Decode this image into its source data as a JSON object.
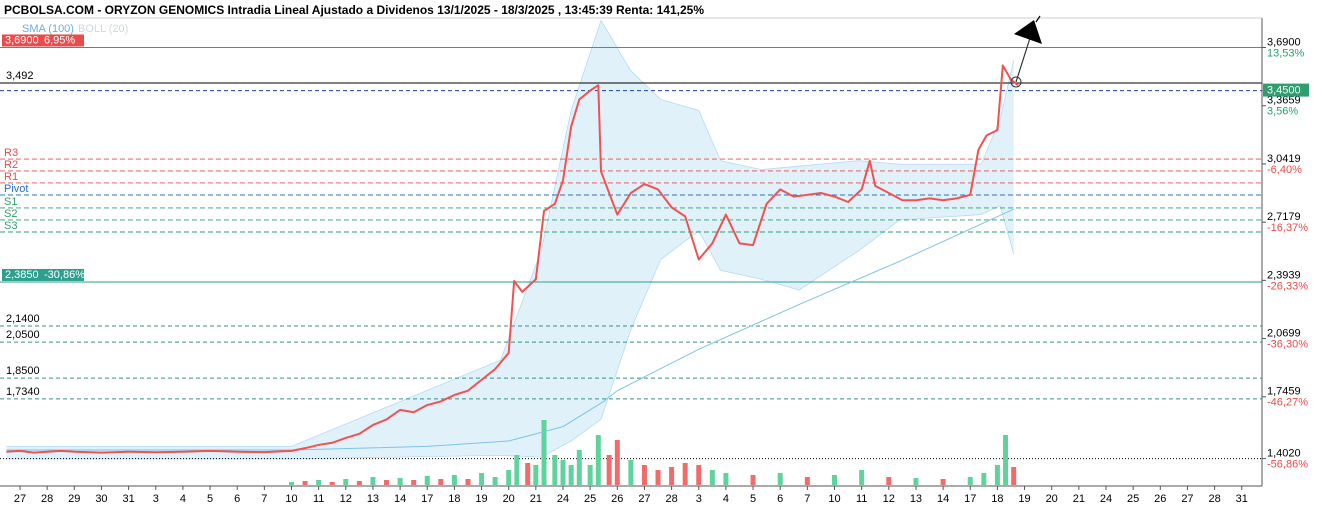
{
  "chart_data": {
    "type": "line",
    "title": "PCBOLSA.COM - ORYZON GENOMICS Intradia Lineal Ajustado a Dividenos 13/1/2025 - 18/3/2025 , 13:45:39 Renta: 141,25%",
    "categories": [
      "27",
      "28",
      "29",
      "30",
      "31",
      "3",
      "4",
      "5",
      "6",
      "7",
      "10",
      "11",
      "12",
      "13",
      "14",
      "17",
      "18",
      "19",
      "20",
      "21",
      "24",
      "25",
      "26",
      "27",
      "28",
      "3",
      "4",
      "5",
      "6",
      "7",
      "10",
      "11",
      "12",
      "13",
      "14",
      "17",
      "18",
      "19",
      "20",
      "21",
      "24",
      "25",
      "26",
      "27",
      "28",
      "31"
    ],
    "ylim": [
      1.255,
      3.854
    ],
    "yticks": [
      {
        "value": 3.69,
        "label": "3,6900"
      },
      {
        "value": 3.3659,
        "label": "3,3659"
      },
      {
        "value": 3.0419,
        "label": "3,0419"
      },
      {
        "value": 2.7179,
        "label": "2,7179"
      },
      {
        "value": 2.3939,
        "label": "2,3939"
      },
      {
        "value": 2.0699,
        "label": "2,0699"
      },
      {
        "value": 1.7459,
        "label": "1,7459"
      },
      {
        "value": 1.402,
        "label": "1,4020"
      }
    ],
    "ytick_pct": [
      "13,53%",
      "3,56%",
      "-6,40%",
      "-16,37%",
      "-26,33%",
      "-36,30%",
      "-46,27%",
      "-56,86%"
    ],
    "ytick_pct_colors": [
      "#26a269",
      "#26a269",
      "#e84c4c",
      "#e84c4c",
      "#e84c4c",
      "#e84c4c",
      "#e84c4c",
      "#e84c4c"
    ],
    "last_price": {
      "value": 3.45,
      "label": "3,4500",
      "color": "#2e9e6e"
    },
    "price": {
      "color": "#f05252",
      "x": [
        -0.5,
        0,
        0.5,
        1,
        1.5,
        2,
        3,
        4,
        5,
        6,
        7,
        8,
        9,
        10,
        10.5,
        11,
        11.5,
        12,
        12.5,
        13,
        13.5,
        14,
        14.5,
        15,
        15.5,
        16,
        16.5,
        17,
        17.5,
        18,
        18.2,
        18.5,
        19,
        19.3,
        19.7,
        20,
        20.3,
        20.6,
        21,
        21.3,
        21.4,
        21.7,
        22,
        22.5,
        23,
        23.5,
        24,
        24.5,
        25,
        25.5,
        26,
        26.5,
        27,
        27.5,
        28,
        28.5,
        29,
        29.5,
        30,
        30.5,
        31,
        31.3,
        31.5,
        32,
        32.5,
        33,
        33.5,
        34,
        34.5,
        35,
        35.3,
        35.6,
        36,
        36.2,
        36.5,
        36.76
      ],
      "values": [
        1.44,
        1.445,
        1.435,
        1.44,
        1.445,
        1.44,
        1.435,
        1.44,
        1.437,
        1.44,
        1.445,
        1.44,
        1.438,
        1.445,
        1.46,
        1.478,
        1.49,
        1.517,
        1.54,
        1.589,
        1.62,
        1.673,
        1.66,
        1.7,
        1.72,
        1.756,
        1.78,
        1.84,
        1.9,
        1.99,
        2.39,
        2.33,
        2.4,
        2.78,
        2.82,
        2.95,
        3.25,
        3.4,
        3.45,
        3.48,
        3.0,
        2.88,
        2.76,
        2.88,
        2.93,
        2.9,
        2.8,
        2.75,
        2.51,
        2.6,
        2.76,
        2.6,
        2.59,
        2.82,
        2.9,
        2.86,
        2.87,
        2.88,
        2.86,
        2.83,
        2.9,
        3.06,
        2.92,
        2.88,
        2.84,
        2.84,
        2.85,
        2.84,
        2.85,
        2.87,
        3.12,
        3.2,
        3.23,
        3.59,
        3.51,
        3.48
      ]
    },
    "series": [
      {
        "name": "SMA (100)",
        "color": "#7cc4e8",
        "x": [
          -0.5,
          10,
          15,
          18,
          20,
          21.5,
          22,
          25,
          28.7,
          32.4,
          36.6
        ],
        "values": [
          1.45,
          1.45,
          1.47,
          1.5,
          1.58,
          1.72,
          1.78,
          2.01,
          2.26,
          2.5,
          2.79
        ]
      },
      {
        "name": "BOLL (20)",
        "color": "#d0e9f8",
        "x": [
          -0.5,
          10,
          17.7,
          19.2,
          20.3,
          21.4,
          22.5,
          23.6,
          25,
          25.8,
          27.3,
          28.7,
          30.9,
          32.4,
          35.4,
          36.1,
          36.6
        ],
        "upper": [
          1.47,
          1.47,
          1.95,
          2.56,
          3.34,
          3.84,
          3.56,
          3.4,
          3.34,
          3.06,
          3.01,
          3.03,
          3.06,
          3.04,
          3.04,
          3.29,
          3.62
        ],
        "lower": [
          1.4,
          1.4,
          1.42,
          1.41,
          1.5,
          1.62,
          2.12,
          2.51,
          2.67,
          2.45,
          2.4,
          2.34,
          2.56,
          2.73,
          2.76,
          2.81,
          2.54
        ]
      }
    ],
    "levels": [
      {
        "label": "3,6900",
        "pct": "6,95%",
        "value": 3.69,
        "color": "#e84c4c",
        "box": true
      },
      {
        "label": "3,492",
        "value": 3.492,
        "color": "#000000"
      },
      {
        "label": "2,3850",
        "pct": "-30,86%",
        "value": 2.385,
        "color": "#2e9e8e",
        "box": true
      },
      {
        "label": "2,1400",
        "value": 2.14,
        "color": "#3a8f8a",
        "dash": "4,3"
      },
      {
        "label": "2,0500",
        "value": 2.05,
        "color": "#3a8f8a",
        "dash": "4,3"
      },
      {
        "label": "1,8500",
        "value": 1.85,
        "color": "#3a8f8a",
        "dash": "4,3"
      },
      {
        "label": "1,7340",
        "value": 1.734,
        "color": "#3a8f8a",
        "dash": "4,3"
      },
      {
        "value": 1.402,
        "color": "#000000",
        "dash": "1,2"
      }
    ],
    "pivots": [
      {
        "name": "R3",
        "value": 3.069,
        "color": "#e84c4c"
      },
      {
        "name": "R2",
        "value": 3.003,
        "color": "#e84c4c"
      },
      {
        "name": "R1",
        "value": 2.936,
        "color": "#e84c4c"
      },
      {
        "name": "Pivot",
        "value": 2.869,
        "color": "#2b6fc2"
      },
      {
        "name": "S1",
        "value": 2.797,
        "color": "#2e9e6e"
      },
      {
        "name": "S2",
        "value": 2.73,
        "color": "#2e9e6e"
      },
      {
        "name": "S3",
        "value": 2.663,
        "color": "#2e9e6e"
      }
    ],
    "volume": {
      "x": [
        10,
        10.5,
        11,
        11.5,
        12,
        12.5,
        13,
        13.5,
        14,
        14.5,
        15,
        15.5,
        16,
        16.5,
        17,
        17.5,
        18,
        18.3,
        18.7,
        19,
        19.3,
        19.7,
        20,
        20.3,
        20.6,
        21,
        21.3,
        21.7,
        22,
        22.5,
        23,
        23.5,
        24,
        24.5,
        25,
        25.5,
        26,
        27,
        28,
        29,
        30,
        31,
        32,
        33,
        34,
        35,
        35.5,
        36,
        36.3,
        36.6
      ],
      "values": [
        3,
        4,
        5,
        3,
        6,
        4,
        8,
        5,
        7,
        5,
        9,
        6,
        10,
        6,
        12,
        8,
        15,
        30,
        22,
        20,
        65,
        30,
        25,
        20,
        35,
        20,
        50,
        30,
        45,
        25,
        20,
        15,
        18,
        22,
        20,
        15,
        12,
        10,
        12,
        8,
        10,
        15,
        8,
        7,
        6,
        8,
        12,
        20,
        50,
        18
      ],
      "colors": [
        "#5fd39b",
        "#f26b6b",
        "#5fd39b",
        "#f26b6b",
        "#5fd39b",
        "#f26b6b",
        "#5fd39b",
        "#f26b6b",
        "#5fd39b",
        "#f26b6b",
        "#5fd39b",
        "#f26b6b",
        "#5fd39b",
        "#f26b6b",
        "#5fd39b",
        "#5fd39b",
        "#5fd39b",
        "#5fd39b",
        "#f26b6b",
        "#5fd39b",
        "#5fd39b",
        "#5fd39b",
        "#5fd39b",
        "#5fd39b",
        "#5fd39b",
        "#5fd39b",
        "#5fd39b",
        "#f26b6b",
        "#f26b6b",
        "#5fd39b",
        "#f26b6b",
        "#f26b6b",
        "#f26b6b",
        "#f26b6b",
        "#f26b6b",
        "#5fd39b",
        "#5fd39b",
        "#f26b6b",
        "#5fd39b",
        "#f26b6b",
        "#5fd39b",
        "#5fd39b",
        "#f26b6b",
        "#5fd39b",
        "#f26b6b",
        "#5fd39b",
        "#5fd39b",
        "#5fd39b",
        "#5fd39b",
        "#f26b6b"
      ]
    }
  }
}
